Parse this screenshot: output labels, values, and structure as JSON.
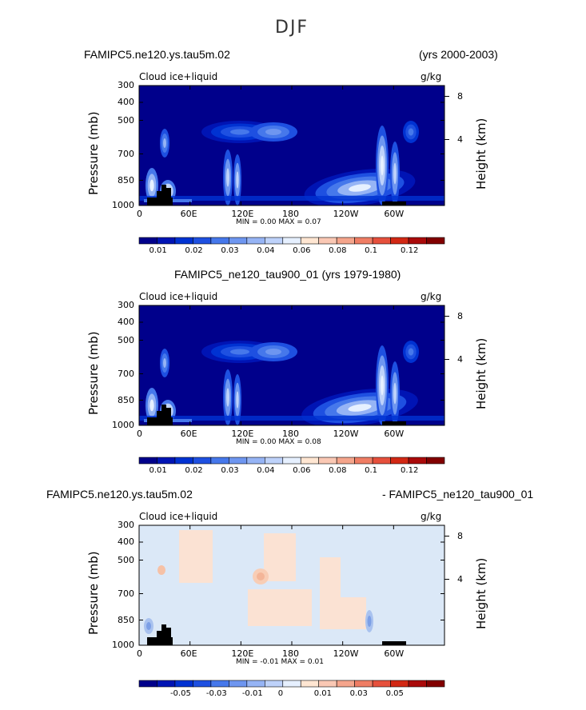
{
  "page_title": "DJF",
  "chart_data": [
    {
      "type": "heatmap",
      "name": "panel-1",
      "title_left": "FAMIPC5.ne120.ys.tau5m.02",
      "title_right": "(yrs 2000-2003)",
      "variable": "Cloud ice+liquid",
      "units": "g/kg",
      "ylabel": "Pressure (mb)",
      "ylabel_right": "Height (km)",
      "yticks": [
        "300",
        "400",
        "500",
        "700",
        "850",
        "1000"
      ],
      "yticks_right": [
        "8",
        "4"
      ],
      "xticks": [
        "0",
        "60E",
        "120E",
        "180",
        "120W",
        "60W"
      ],
      "min_label": "MIN =",
      "min_value": "0.00",
      "max_label": "MAX =",
      "max_value": "0.07",
      "colorbar": {
        "colors": [
          "#00008b",
          "#0014b4",
          "#0032d2",
          "#1e50e1",
          "#4678eb",
          "#6e96f0",
          "#96b4f5",
          "#bed2fa",
          "#e6f0ff",
          "#ffe6d2",
          "#fac8b4",
          "#f5a58c",
          "#ef7d64",
          "#e6503c",
          "#d22814",
          "#aa0a0a",
          "#820000"
        ],
        "labels": [
          "0.01",
          "0.02",
          "0.03",
          "0.04",
          "0.06",
          "0.08",
          "0.1",
          "0.12"
        ]
      }
    },
    {
      "type": "heatmap",
      "name": "panel-2",
      "title_center": "FAMIPC5_ne120_tau900_01 (yrs 1979-1980)",
      "variable": "Cloud ice+liquid",
      "units": "g/kg",
      "ylabel": "Pressure (mb)",
      "ylabel_right": "Height (km)",
      "yticks": [
        "300",
        "400",
        "500",
        "700",
        "850",
        "1000"
      ],
      "yticks_right": [
        "8",
        "4"
      ],
      "xticks": [
        "0",
        "60E",
        "120E",
        "180",
        "120W",
        "60W"
      ],
      "min_label": "MIN =",
      "min_value": "0.00",
      "max_label": "MAX =",
      "max_value": "0.08",
      "colorbar": {
        "colors": [
          "#00008b",
          "#0014b4",
          "#0032d2",
          "#1e50e1",
          "#4678eb",
          "#6e96f0",
          "#96b4f5",
          "#bed2fa",
          "#e6f0ff",
          "#ffe6d2",
          "#fac8b4",
          "#f5a58c",
          "#ef7d64",
          "#e6503c",
          "#d22814",
          "#aa0a0a",
          "#820000"
        ],
        "labels": [
          "0.01",
          "0.02",
          "0.03",
          "0.04",
          "0.06",
          "0.08",
          "0.1",
          "0.12"
        ]
      }
    },
    {
      "type": "heatmap",
      "name": "panel-3-difference",
      "title_left": "FAMIPC5.ne120.ys.tau5m.02",
      "title_right": "- FAMIPC5_ne120_tau900_01",
      "variable": "Cloud ice+liquid",
      "units": "g/kg",
      "ylabel": "Pressure (mb)",
      "ylabel_right": "Height (km)",
      "yticks": [
        "300",
        "400",
        "500",
        "700",
        "850",
        "1000"
      ],
      "yticks_right": [
        "8",
        "4"
      ],
      "xticks": [
        "0",
        "60E",
        "120E",
        "180",
        "120W",
        "60W"
      ],
      "min_label": "MIN =",
      "min_value": "-0.01",
      "max_label": "MAX =",
      "max_value": "0.01",
      "colorbar": {
        "colors": [
          "#00008b",
          "#0014b4",
          "#0032d2",
          "#1e50e1",
          "#4678eb",
          "#6e96f0",
          "#96b4f5",
          "#bed2fa",
          "#e6f0ff",
          "#ffe6d2",
          "#fac8b4",
          "#f5a58c",
          "#ef7d64",
          "#e6503c",
          "#d22814",
          "#aa0a0a",
          "#820000"
        ],
        "labels": [
          "-0.05",
          "-0.03",
          "-0.01",
          "0",
          "0.01",
          "0.03",
          "0.05"
        ]
      }
    }
  ]
}
